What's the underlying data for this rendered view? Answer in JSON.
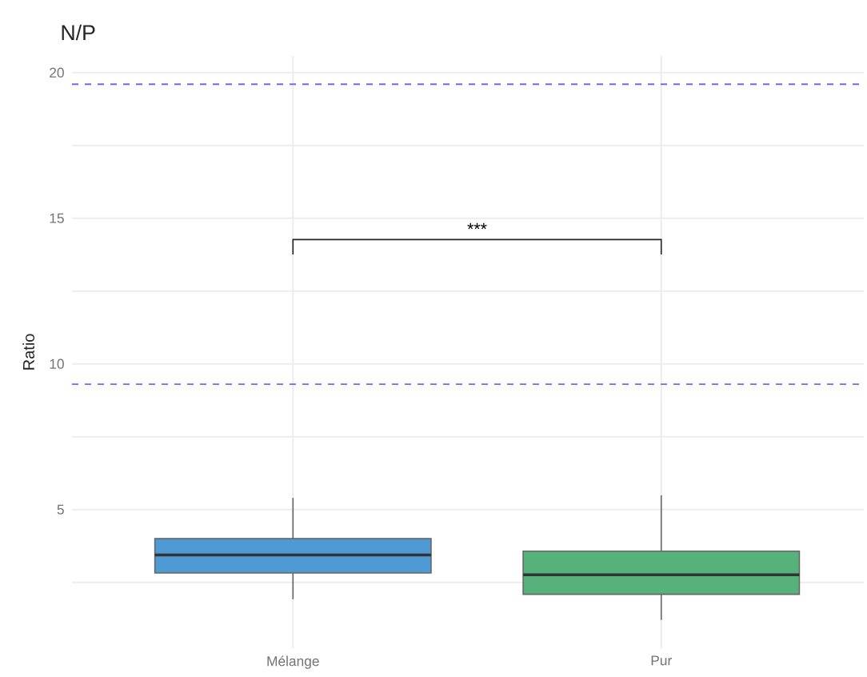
{
  "chart_data": {
    "type": "box",
    "title": "N/P",
    "ylabel": "Ratio",
    "categories": [
      "Mélange",
      "Pur"
    ],
    "series": [
      {
        "color": "#4e9ad4",
        "boxes": [
          {
            "low": 1.92,
            "q1": 2.82,
            "median": 3.44,
            "q3": 4.0,
            "high": 5.4
          },
          null
        ]
      },
      {
        "color": "#56b27a",
        "boxes": [
          null,
          {
            "low": 1.21,
            "q1": 2.09,
            "median": 2.76,
            "q3": 3.57,
            "high": 5.49
          }
        ]
      }
    ],
    "ylim": [
      0.24,
      20.57
    ],
    "yticks": [
      {
        "value": 2.5,
        "label": null
      },
      5,
      {
        "value": 7.5,
        "label": null
      },
      10,
      {
        "value": 12.5,
        "label": null
      },
      15,
      {
        "value": 17.5,
        "label": null
      },
      20
    ],
    "grid": true,
    "ref_lines": [
      {
        "axis": "y",
        "value": 19.6,
        "color": "#6a6aff",
        "line_style": "dashed"
      },
      {
        "axis": "y",
        "value": 9.3,
        "color": "#6a6aff",
        "line_style": "dashed"
      }
    ],
    "annotations": [
      "***"
    ]
  }
}
